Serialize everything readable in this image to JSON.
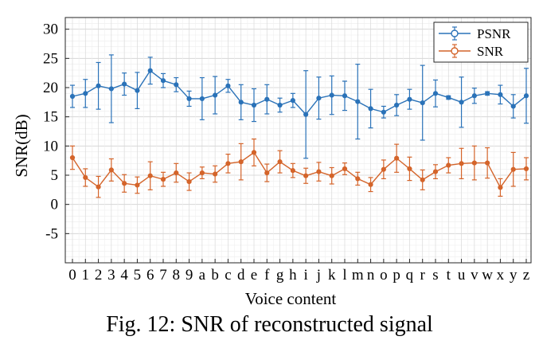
{
  "caption": "Fig. 12: SNR of reconstructed signal",
  "chart_data": {
    "type": "line",
    "title": "",
    "xlabel": "Voice content",
    "ylabel": "SNR(dB)",
    "ylim": [
      -10,
      32
    ],
    "yticks": [
      -5,
      0,
      5,
      10,
      15,
      20,
      25,
      30
    ],
    "grid": true,
    "legend_position": "top-right",
    "categories": [
      "0",
      "1",
      "2",
      "3",
      "4",
      "5",
      "6",
      "7",
      "8",
      "9",
      "a",
      "b",
      "c",
      "d",
      "e",
      "f",
      "g",
      "h",
      "i",
      "j",
      "k",
      "l",
      "m",
      "n",
      "o",
      "p",
      "q",
      "r",
      "s",
      "t",
      "u",
      "v",
      "w",
      "x",
      "y",
      "z"
    ],
    "series": [
      {
        "name": "PSNR",
        "color": "#2a72b8",
        "values": [
          18.5,
          19.0,
          20.3,
          19.8,
          20.6,
          19.5,
          22.9,
          21.2,
          20.5,
          18.1,
          18.1,
          18.7,
          20.3,
          17.5,
          17.0,
          18.0,
          17.0,
          17.8,
          15.4,
          18.2,
          18.7,
          18.6,
          17.6,
          16.4,
          15.8,
          17.0,
          18.0,
          17.4,
          19.0,
          18.3,
          17.5,
          18.6,
          19.0,
          18.8,
          16.8,
          18.6
        ],
        "err": [
          1.9,
          2.4,
          4.0,
          5.8,
          1.9,
          3.1,
          2.3,
          1.2,
          1.2,
          1.3,
          3.6,
          3.2,
          1.1,
          3.0,
          2.8,
          2.5,
          1.2,
          1.2,
          7.5,
          3.6,
          3.3,
          2.5,
          6.4,
          3.3,
          1.0,
          1.8,
          1.7,
          6.4,
          2.3,
          0.3,
          4.3,
          1.3,
          0.3,
          1.6,
          2.0,
          4.7
        ]
      },
      {
        "name": "SNR",
        "color": "#d4642a",
        "values": [
          8.0,
          4.6,
          3.0,
          5.9,
          3.6,
          3.3,
          4.9,
          4.3,
          5.4,
          3.9,
          5.4,
          5.2,
          7.0,
          7.3,
          8.9,
          5.4,
          7.3,
          5.8,
          4.9,
          5.6,
          4.9,
          6.1,
          4.4,
          3.4,
          6.0,
          7.9,
          6.1,
          4.2,
          5.6,
          6.7,
          7.0,
          7.1,
          7.1,
          2.9,
          6.0,
          6.1
        ]
      }
    ],
    "snr_err": [
      2.0,
      1.5,
      1.8,
      1.9,
      1.5,
      1.4,
      2.4,
      1.2,
      1.6,
      1.5,
      1.0,
      1.4,
      1.6,
      3.1,
      2.3,
      1.5,
      1.9,
      1.2,
      1.3,
      1.6,
      1.4,
      1.0,
      1.1,
      1.2,
      1.6,
      2.4,
      2.0,
      1.7,
      1.2,
      1.3,
      2.6,
      2.9,
      2.6,
      1.5,
      2.9,
      1.9
    ]
  }
}
